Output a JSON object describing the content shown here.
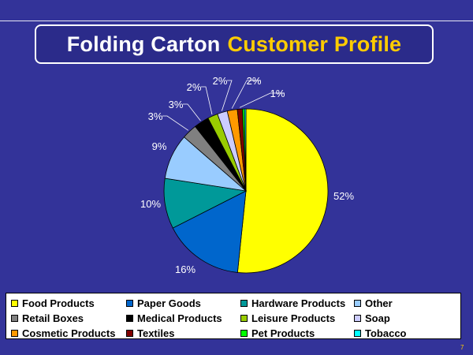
{
  "slide": {
    "title_part1": "Folding Carton",
    "title_part2": "Customer Profile",
    "page_number": "7"
  },
  "colors": {
    "background": "#333399",
    "title_highlight": "#ffcc00"
  },
  "chart_data": {
    "type": "pie",
    "title": "",
    "legend_position": "bottom",
    "slices": [
      {
        "name": "Food Products",
        "value": 52,
        "label": "52%",
        "color": "#ffff00"
      },
      {
        "name": "Paper Goods",
        "value": 16,
        "label": "16%",
        "color": "#0066cc"
      },
      {
        "name": "Hardware Products",
        "value": 10,
        "label": "10%",
        "color": "#009999"
      },
      {
        "name": "Other",
        "value": 9,
        "label": "9%",
        "color": "#99ccff"
      },
      {
        "name": "Retail Boxes",
        "value": 3,
        "label": "3%",
        "color": "#808080"
      },
      {
        "name": "Medical Products",
        "value": 3,
        "label": "3%",
        "color": "#000000"
      },
      {
        "name": "Leisure Products",
        "value": 2,
        "label": "2%",
        "color": "#99cc00"
      },
      {
        "name": "Soap",
        "value": 2,
        "label": "2%",
        "color": "#ccccff"
      },
      {
        "name": "Cosmetic Products",
        "value": 2,
        "label": "2%",
        "color": "#ff9900"
      },
      {
        "name": "Textiles",
        "value": 1,
        "label": "1%",
        "color": "#800000"
      },
      {
        "name": "Pet Products",
        "value": 0.4,
        "label": "",
        "color": "#00ff00"
      },
      {
        "name": "Tobacco",
        "value": 0.3,
        "label": "",
        "color": "#00ffff"
      }
    ]
  }
}
